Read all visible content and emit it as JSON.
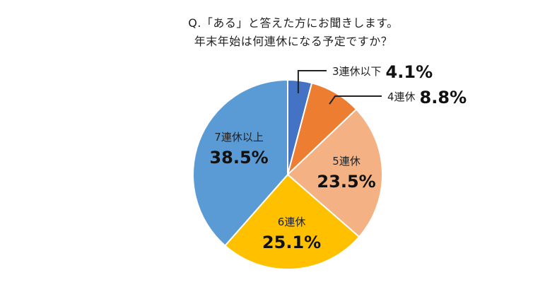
{
  "chart_data": {
    "type": "pie",
    "title_lines": [
      "Q.「ある」と答えた方にお聞きします。",
      "年末年始は何連休になる予定ですか？"
    ],
    "slices": [
      {
        "label": "3連休以下",
        "value": 4.1,
        "display": "4.1%",
        "color": "#4472c4"
      },
      {
        "label": "4連休",
        "value": 8.8,
        "display": "8.8%",
        "color": "#ed7d31"
      },
      {
        "label": "5連休",
        "value": 23.5,
        "display": "23.5%",
        "color": "#f4b183"
      },
      {
        "label": "6連休",
        "value": 25.1,
        "display": "25.1%",
        "color": "#ffc000"
      },
      {
        "label": "7連休以上",
        "value": 38.5,
        "display": "38.5%",
        "color": "#5b9bd5"
      }
    ],
    "start_angle": "12 o'clock",
    "direction": "clockwise"
  }
}
